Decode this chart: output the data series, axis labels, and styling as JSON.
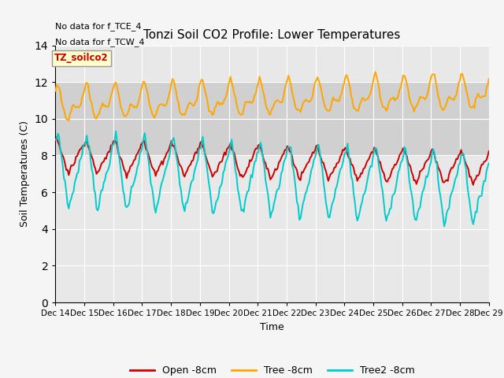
{
  "title": "Tonzi Soil CO2 Profile: Lower Temperatures",
  "ylabel": "Soil Temperatures (C)",
  "xlabel": "Time",
  "annotation1": "No data for f_TCE_4",
  "annotation2": "No data for f_TCW_4",
  "legend_label": "TZ_soilco2",
  "ylim": [
    0,
    14
  ],
  "yticks": [
    0,
    2,
    4,
    6,
    8,
    10,
    12,
    14
  ],
  "xtick_labels": [
    "Dec 14",
    "Dec 15",
    "Dec 16",
    "Dec 17",
    "Dec 18",
    "Dec 19",
    "Dec 20",
    "Dec 21",
    "Dec 22",
    "Dec 23",
    "Dec 24",
    "Dec 25",
    "Dec 26",
    "Dec 27",
    "Dec 28",
    "Dec 29"
  ],
  "color_open": "#cc0000",
  "color_tree": "#FFA500",
  "color_tree2": "#00CCCC",
  "bg_color": "#e8e8e8",
  "grid_color": "#ffffff",
  "shaded_band_min": 8,
  "shaded_band_max": 12,
  "shaded_band_color": "#d0d0d0",
  "legend_box_color": "#ffffcc",
  "legend_box_edge": "#999999",
  "legend_label_color": "#cc0000",
  "fig_bg": "#f5f5f5",
  "legend_items": [
    "Open -8cm",
    "Tree -8cm",
    "Tree2 -8cm"
  ]
}
